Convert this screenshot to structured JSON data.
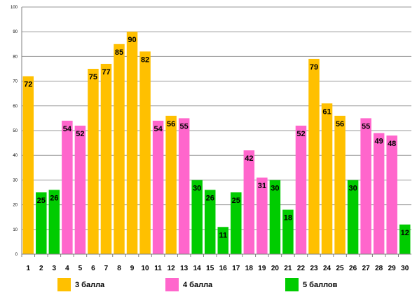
{
  "chart_data": {
    "type": "bar",
    "categories": [
      "1",
      "2",
      "3",
      "4",
      "5",
      "6",
      "7",
      "8",
      "9",
      "10",
      "11",
      "12",
      "13",
      "14",
      "15",
      "16",
      "17",
      "18",
      "19",
      "20",
      "21",
      "22",
      "23",
      "24",
      "25",
      "26",
      "27",
      "28",
      "29",
      "30"
    ],
    "values": [
      72,
      25,
      26,
      54,
      52,
      75,
      77,
      85,
      90,
      82,
      54,
      56,
      55,
      30,
      26,
      11,
      25,
      42,
      31,
      30,
      18,
      52,
      79,
      61,
      56,
      30,
      55,
      49,
      48,
      12
    ],
    "groups": [
      "3 балла",
      "5 баллов",
      "5 баллов",
      "4 балла",
      "4 балла",
      "3 балла",
      "3 балла",
      "3 балла",
      "3 балла",
      "3 балла",
      "4 балла",
      "3 балла",
      "4 балла",
      "5 баллов",
      "5 баллов",
      "5 баллов",
      "5 баллов",
      "4 балла",
      "4 балла",
      "5 баллов",
      "5 баллов",
      "4 балла",
      "3 балла",
      "3 балла",
      "3 балла",
      "5 баллов",
      "4 балла",
      "4 балла",
      "4 балла",
      "5 баллов"
    ],
    "ylim": [
      0,
      100
    ],
    "yticks": [
      0,
      10,
      20,
      30,
      40,
      50,
      60,
      70,
      80,
      90,
      100
    ],
    "grid": true,
    "legend_position": "bottom",
    "legend": [
      {
        "name": "3 балла",
        "color": "#FFC000"
      },
      {
        "name": "4 балла",
        "color": "#FF66CC"
      },
      {
        "name": "5 баллов",
        "color": "#00CC00"
      }
    ]
  }
}
